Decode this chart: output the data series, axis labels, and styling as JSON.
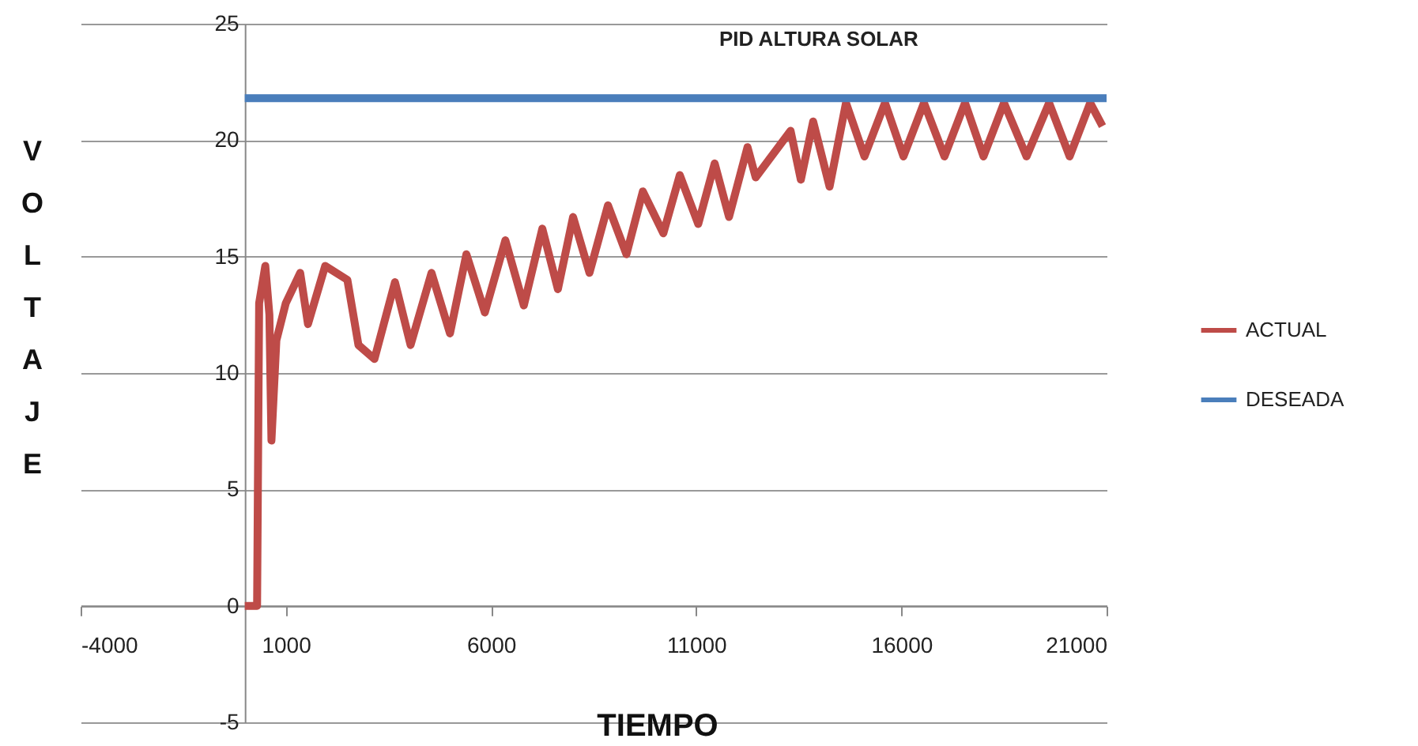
{
  "chart_data": {
    "type": "line",
    "title": "PID ALTURA SOLAR",
    "xlabel": "TIEMPO",
    "ylabel": "VOLTAJE",
    "xlim": [
      -4000,
      21000
    ],
    "xticks": [
      -4000,
      1000,
      6000,
      11000,
      16000,
      21000
    ],
    "ylim": [
      -5,
      25
    ],
    "yticks": [
      -5,
      0,
      5,
      10,
      15,
      20,
      25
    ],
    "grid": "y",
    "legend": "right",
    "series": [
      {
        "name": "ACTUAL",
        "color": "#be4b48",
        "x": [
          0,
          300,
          350,
          500,
          600,
          650,
          770,
          1000,
          1350,
          1540,
          1960,
          2500,
          2770,
          3160,
          3660,
          4040,
          4550,
          5000,
          5400,
          5850,
          6350,
          6800,
          7250,
          7630,
          8000,
          8400,
          8850,
          9300,
          9700,
          10200,
          10600,
          11050,
          11450,
          11800,
          12250,
          12450,
          13300,
          13550,
          13850,
          14250,
          14650,
          15100,
          15600,
          16050,
          16550,
          17050,
          17550,
          18000,
          18500,
          19050,
          19600,
          20100,
          20600,
          20900
        ],
        "values": [
          0,
          0,
          13,
          14.6,
          12.5,
          7.1,
          11.4,
          13.0,
          14.3,
          12.1,
          14.6,
          14.0,
          11.2,
          10.6,
          13.9,
          11.2,
          14.3,
          11.7,
          15.1,
          12.6,
          15.7,
          12.9,
          16.2,
          13.6,
          16.7,
          14.3,
          17.2,
          15.1,
          17.8,
          16.0,
          18.5,
          16.4,
          19.0,
          16.7,
          19.7,
          18.4,
          20.4,
          18.3,
          20.8,
          18.0,
          21.6,
          19.3,
          21.6,
          19.3,
          21.6,
          19.3,
          21.6,
          19.3,
          21.6,
          19.3,
          21.6,
          19.3,
          21.6,
          20.6
        ]
      },
      {
        "name": "DESEADA",
        "color": "#4a7ebb",
        "x": [
          0,
          21000
        ],
        "values": [
          21.8,
          21.8
        ]
      }
    ]
  }
}
